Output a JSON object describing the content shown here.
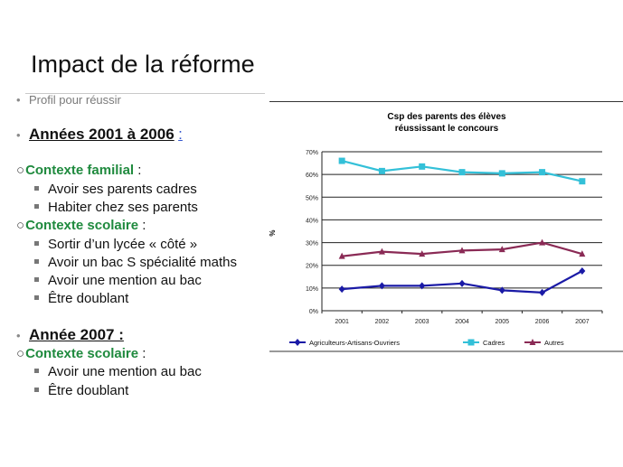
{
  "slide": {
    "title": "Impact de la réforme",
    "profil": "Profil pour réussir",
    "period1": {
      "heading": "Années 2001 à 2006",
      "colon": ":"
    },
    "familial": {
      "heading": "Contexte familial",
      "colon": ":",
      "items": [
        "Avoir ses parents cadres",
        "Habiter chez ses parents"
      ]
    },
    "scolaire1": {
      "heading": "Contexte scolaire",
      "colon": ":",
      "items": [
        "Sortir d’un lycée « côté »",
        "Avoir un bac S spécialité maths",
        "Avoir une mention au bac",
        "Être doublant"
      ]
    },
    "period2": {
      "heading": "Année 2007 :"
    },
    "scolaire2": {
      "heading": "Contexte scolaire",
      "colon": ":",
      "items": [
        "Avoir une mention au bac",
        "Être doublant"
      ]
    }
  },
  "chart_data": {
    "type": "line",
    "title": "Csp des parents des élèves",
    "subtitle": "réussissant le concours",
    "ylabel": "%",
    "xlabel": "",
    "categories": [
      "2001",
      "2002",
      "2003",
      "2004",
      "2005",
      "2006",
      "2007"
    ],
    "ylim": [
      0,
      70
    ],
    "yticks": [
      0,
      10,
      20,
      30,
      40,
      50,
      60,
      70
    ],
    "yticklabels": [
      "0%",
      "10%",
      "20%",
      "30%",
      "40%",
      "50%",
      "60%",
      "70%"
    ],
    "grid": true,
    "legend_position": "bottom",
    "series": [
      {
        "name": "Agriculteurs-Artisans-Ouvriers",
        "color": "#1a1aa6",
        "marker": "diamond",
        "values": [
          9.5,
          11,
          11,
          12,
          9,
          8,
          17.5
        ]
      },
      {
        "name": "Cadres",
        "color": "#33c0d8",
        "marker": "square",
        "values": [
          66,
          61.5,
          63.5,
          61,
          60.5,
          61,
          57
        ]
      },
      {
        "name": "Autres",
        "color": "#8a2a55",
        "marker": "triangle",
        "values": [
          24,
          26,
          25,
          26.5,
          27,
          30,
          25
        ]
      }
    ]
  }
}
